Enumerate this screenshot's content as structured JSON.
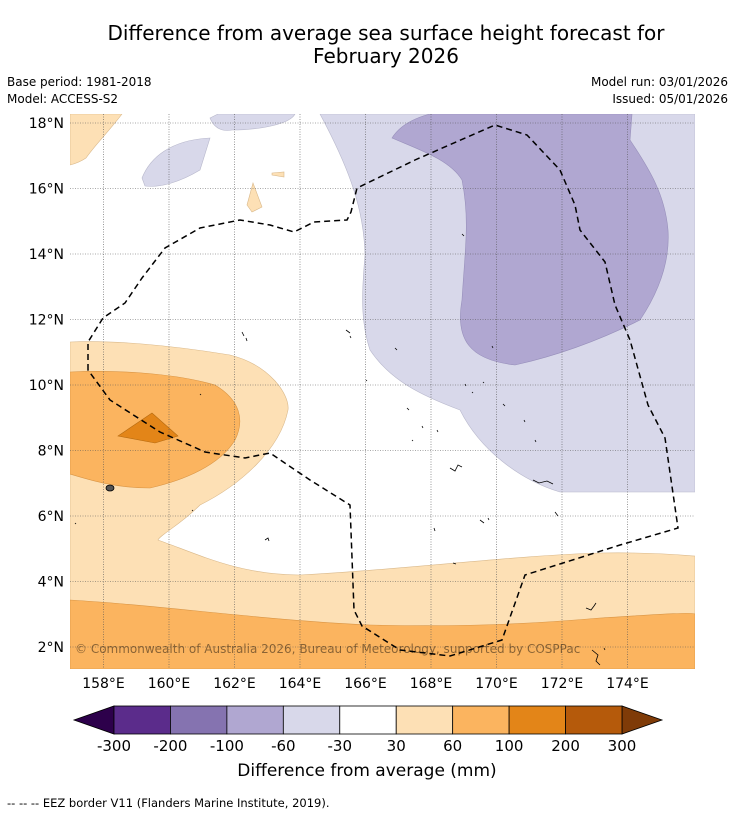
{
  "title_line1": "Difference from average sea surface height forecast for",
  "title_line2": "February 2026",
  "meta": {
    "base_period": "Base period: 1981-2018",
    "model": "Model: ACCESS-S2",
    "model_run": "Model run: 03/01/2026",
    "issued": "Issued: 05/01/2026"
  },
  "map": {
    "lat_labels": [
      {
        "value": 18,
        "label": "18°N"
      },
      {
        "value": 16,
        "label": "16°N"
      },
      {
        "value": 14,
        "label": "14°N"
      },
      {
        "value": 12,
        "label": "12°N"
      },
      {
        "value": 10,
        "label": "10°N"
      },
      {
        "value": 8,
        "label": "8°N"
      },
      {
        "value": 6,
        "label": "6°N"
      },
      {
        "value": 4,
        "label": "4°N"
      },
      {
        "value": 2,
        "label": "2°N"
      }
    ],
    "lon_labels": [
      {
        "value": 158,
        "label": "158°E"
      },
      {
        "value": 160,
        "label": "160°E"
      },
      {
        "value": 162,
        "label": "162°E"
      },
      {
        "value": 164,
        "label": "164°E"
      },
      {
        "value": 166,
        "label": "166°E"
      },
      {
        "value": 168,
        "label": "168°E"
      },
      {
        "value": 170,
        "label": "170°E"
      },
      {
        "value": 172,
        "label": "172°E"
      },
      {
        "value": 174,
        "label": "174°E"
      }
    ],
    "copyright": "© Commonwealth of Australia 2026, Bureau of Meteorology, supported by COSPPac"
  },
  "colorbar": {
    "ticks": [
      "-300",
      "-200",
      "-100",
      "-60",
      "-30",
      "30",
      "60",
      "100",
      "200",
      "300"
    ],
    "colors": [
      "#5b2c8b",
      "#8573b0",
      "#b0a7d1",
      "#d8d8ea",
      "#ffffff",
      "#fde0b5",
      "#fbb45f",
      "#e38518",
      "#b55a0b"
    ],
    "under_color": "#2d004b",
    "over_color": "#7f3b08",
    "label": "Difference from average (mm)"
  },
  "footnote": "-- -- -- EEZ border V11 (Flanders Marine Institute, 2019)."
}
